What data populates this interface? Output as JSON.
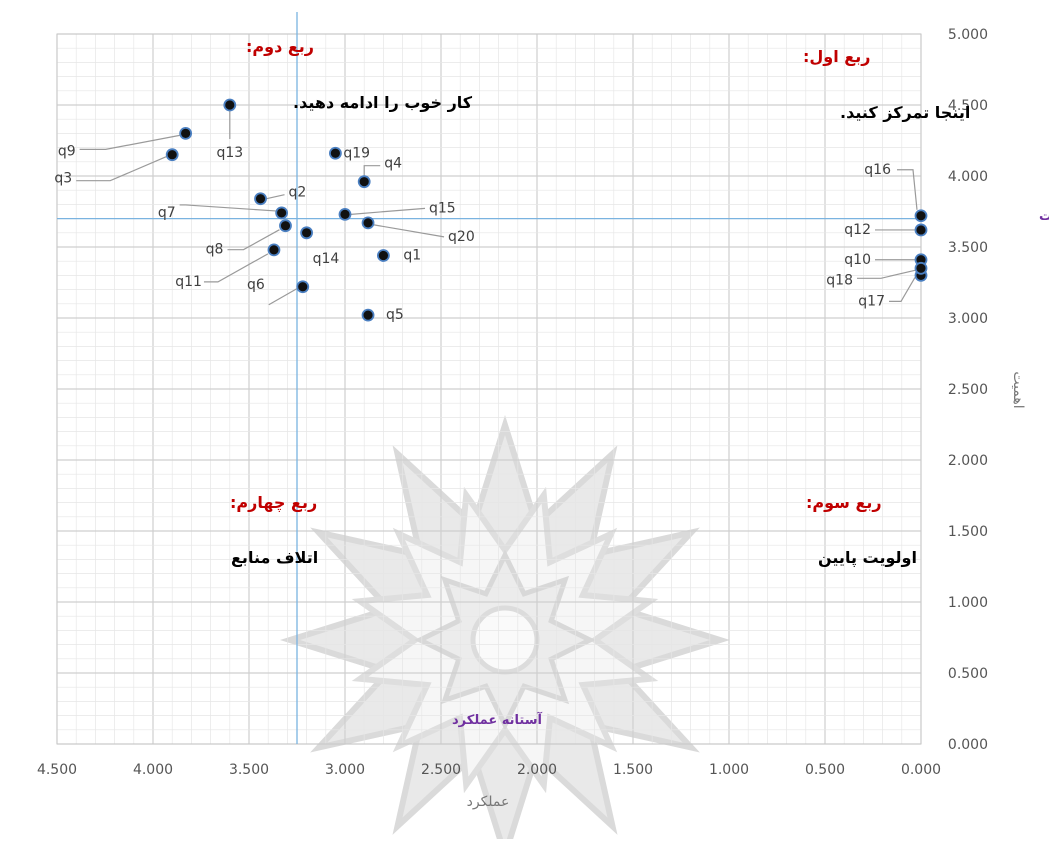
{
  "chart_data": {
    "type": "scatter",
    "xlabel": "عملکرد",
    "ylabel": "اهمیت",
    "x_reversed": true,
    "xlim": [
      0,
      4.5
    ],
    "ylim": [
      0,
      5
    ],
    "x_ticks": [
      {
        "value": 4.5,
        "label": "4.500"
      },
      {
        "value": 4.0,
        "label": "4.000"
      },
      {
        "value": 3.5,
        "label": "3.500"
      },
      {
        "value": 3.0,
        "label": "3.000"
      },
      {
        "value": 2.5,
        "label": "2.500"
      },
      {
        "value": 2.0,
        "label": "2.000"
      },
      {
        "value": 1.5,
        "label": "1.500"
      },
      {
        "value": 1.0,
        "label": "1.000"
      },
      {
        "value": 0.5,
        "label": "0.500"
      },
      {
        "value": 0.0,
        "label": "0.000"
      }
    ],
    "y_ticks": [
      {
        "value": 5.0,
        "label": "5.000"
      },
      {
        "value": 4.5,
        "label": "4.500"
      },
      {
        "value": 4.0,
        "label": "4.000"
      },
      {
        "value": 3.5,
        "label": "3.500"
      },
      {
        "value": 3.0,
        "label": "3.000"
      },
      {
        "value": 2.5,
        "label": "2.500"
      },
      {
        "value": 2.0,
        "label": "2.000"
      },
      {
        "value": 1.5,
        "label": "1.500"
      },
      {
        "value": 1.0,
        "label": "1.000"
      },
      {
        "value": 0.5,
        "label": "0.500"
      },
      {
        "value": 0.0,
        "label": "0.000"
      }
    ],
    "grid": true,
    "thresholds": {
      "performance": {
        "value": 3.25,
        "label": "آستانه عملکرد"
      },
      "importance": {
        "value": 3.7,
        "label": "آستانه اهمیت"
      }
    },
    "points": [
      {
        "label": "q1",
        "x": 2.8,
        "y": 3.44
      },
      {
        "label": "q2",
        "x": 3.44,
        "y": 3.84
      },
      {
        "label": "q3",
        "x": 3.9,
        "y": 4.15
      },
      {
        "label": "q4",
        "x": 2.9,
        "y": 3.96
      },
      {
        "label": "q5",
        "x": 2.88,
        "y": 3.02
      },
      {
        "label": "q6",
        "x": 3.22,
        "y": 3.22
      },
      {
        "label": "q7",
        "x": 3.33,
        "y": 3.74
      },
      {
        "label": "q8",
        "x": 3.31,
        "y": 3.65
      },
      {
        "label": "q9",
        "x": 3.83,
        "y": 4.3
      },
      {
        "label": "q10",
        "x": 0.0,
        "y": 3.41
      },
      {
        "label": "q11",
        "x": 3.37,
        "y": 3.48
      },
      {
        "label": "q12",
        "x": 0.0,
        "y": 3.62
      },
      {
        "label": "q13",
        "x": 3.6,
        "y": 4.5
      },
      {
        "label": "q14",
        "x": 3.2,
        "y": 3.6
      },
      {
        "label": "q15",
        "x": 3.0,
        "y": 3.73
      },
      {
        "label": "q16",
        "x": 0.0,
        "y": 3.72
      },
      {
        "label": "q17",
        "x": 0.0,
        "y": 3.3
      },
      {
        "label": "q18",
        "x": 0.0,
        "y": 3.35
      },
      {
        "label": "q19",
        "x": 3.05,
        "y": 4.16
      },
      {
        "label": "q20",
        "x": 2.88,
        "y": 3.67
      }
    ],
    "quadrants": [
      {
        "id": "q1",
        "title": "ربع اول:",
        "subtitle": "اینجا تمرکز کنید."
      },
      {
        "id": "q2",
        "title": "ربع دوم:",
        "subtitle": "کار خوب را ادامه دهید."
      },
      {
        "id": "q3",
        "title": "ربع سوم:",
        "subtitle": "اولویت پایین"
      },
      {
        "id": "q4",
        "title": "ربع چهارم:",
        "subtitle": "اتلاف منابع"
      }
    ],
    "colors": {
      "point_fill": "#111111",
      "point_ring": "#4a7fc1",
      "threshold_line": "#7ab3e0",
      "grid_major": "#cfcfcf",
      "grid_minor": "#e6e6e6",
      "quadrant_title": "#c00000",
      "threshold_label": "#7030a0",
      "tick_text": "#555555"
    }
  }
}
